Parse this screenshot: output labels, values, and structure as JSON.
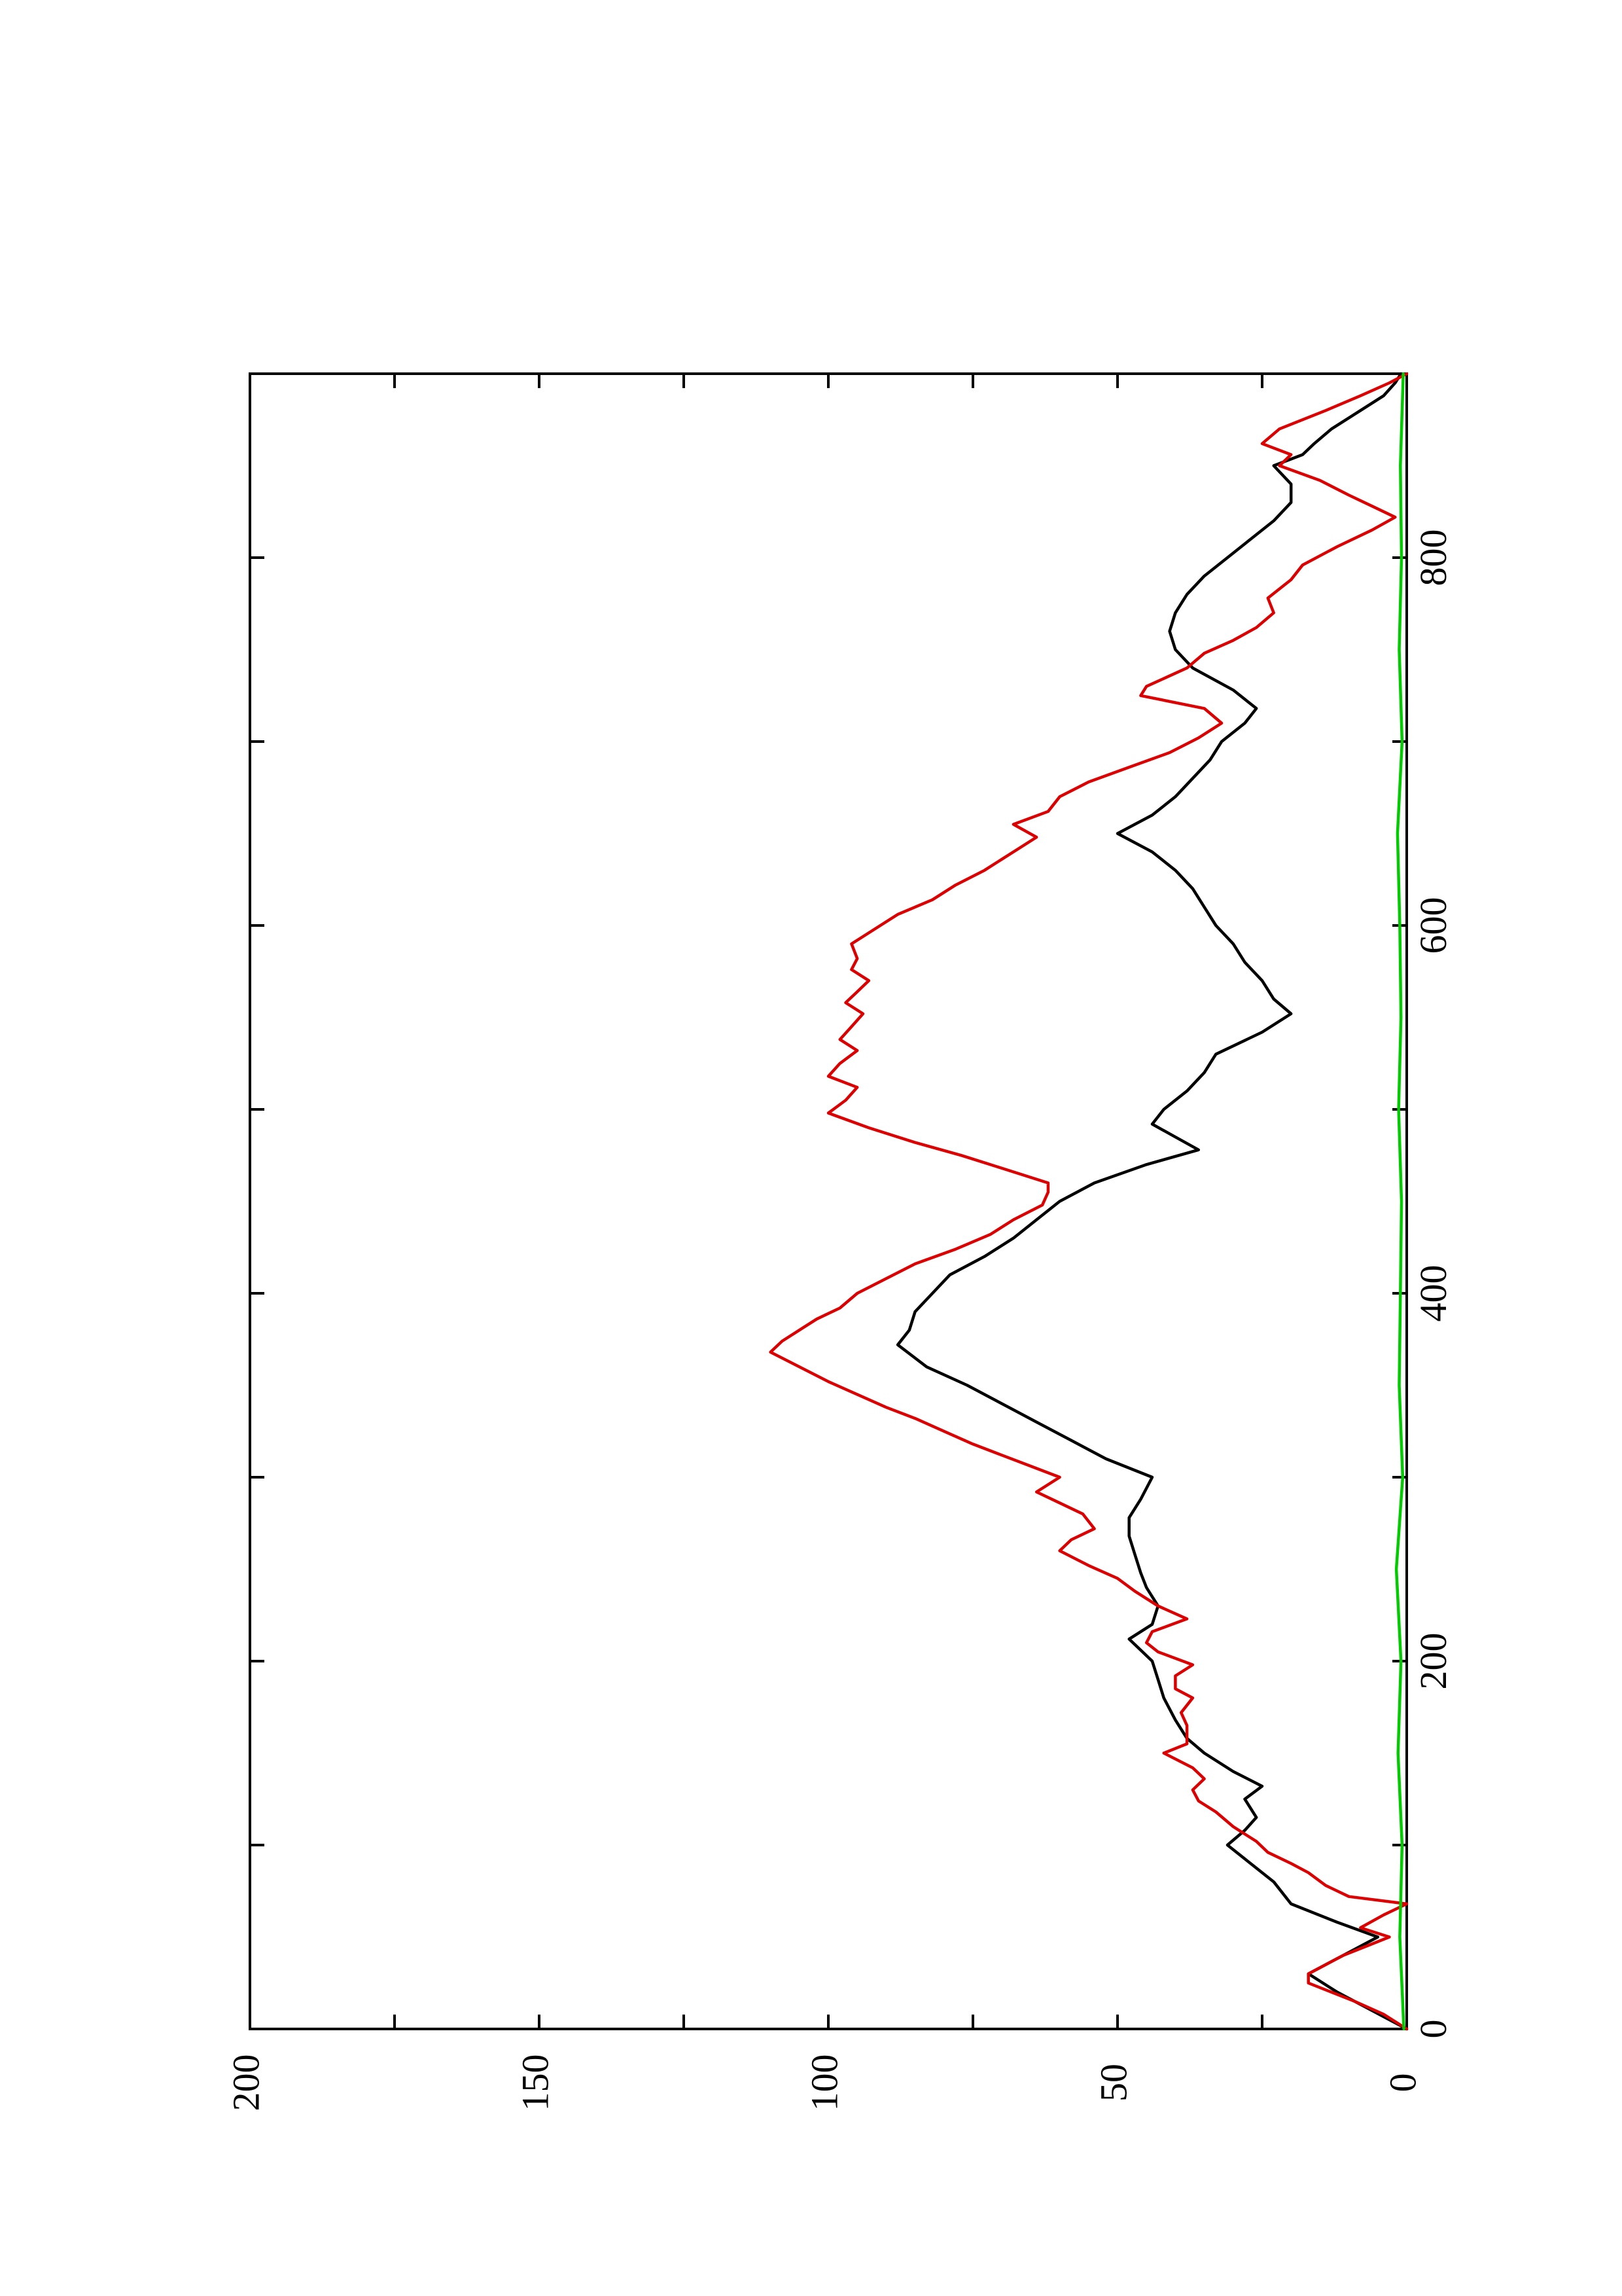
{
  "chart_data": {
    "type": "line",
    "orientation": "rotated-90-counterclockwise",
    "title": "",
    "xlabel": "",
    "ylabel": "",
    "xlim": [
      0,
      900
    ],
    "ylim": [
      0,
      200
    ],
    "xticks": [
      0,
      200,
      400,
      600,
      800
    ],
    "xticks_minor": [
      100,
      300,
      500,
      700
    ],
    "yticks": [
      0,
      50,
      100,
      150,
      200
    ],
    "yticks_minor": [
      25,
      75,
      125,
      175
    ],
    "grid": false,
    "legend": "none",
    "series": [
      {
        "color": "#000000",
        "points": [
          [
            0,
            0
          ],
          [
            10,
            6
          ],
          [
            20,
            12
          ],
          [
            30,
            17
          ],
          [
            40,
            11
          ],
          [
            50,
            5
          ],
          [
            58,
            12
          ],
          [
            68,
            20
          ],
          [
            80,
            23
          ],
          [
            90,
            27
          ],
          [
            100,
            31
          ],
          [
            108,
            28
          ],
          [
            115,
            26
          ],
          [
            125,
            28
          ],
          [
            132,
            25
          ],
          [
            140,
            30
          ],
          [
            150,
            35
          ],
          [
            158,
            38
          ],
          [
            168,
            40
          ],
          [
            180,
            42
          ],
          [
            190,
            43
          ],
          [
            200,
            44
          ],
          [
            212,
            48
          ],
          [
            220,
            44
          ],
          [
            230,
            43
          ],
          [
            240,
            45
          ],
          [
            248,
            46
          ],
          [
            258,
            47
          ],
          [
            268,
            48
          ],
          [
            278,
            48
          ],
          [
            288,
            46
          ],
          [
            300,
            44
          ],
          [
            310,
            52
          ],
          [
            320,
            58
          ],
          [
            330,
            64
          ],
          [
            340,
            70
          ],
          [
            350,
            76
          ],
          [
            360,
            83
          ],
          [
            372,
            88
          ],
          [
            380,
            86
          ],
          [
            390,
            85
          ],
          [
            400,
            82
          ],
          [
            410,
            79
          ],
          [
            420,
            73
          ],
          [
            430,
            68
          ],
          [
            440,
            64
          ],
          [
            450,
            60
          ],
          [
            460,
            54
          ],
          [
            470,
            45
          ],
          [
            478,
            36
          ],
          [
            485,
            40
          ],
          [
            492,
            44
          ],
          [
            500,
            42
          ],
          [
            510,
            38
          ],
          [
            520,
            35
          ],
          [
            530,
            33
          ],
          [
            542,
            25
          ],
          [
            552,
            20
          ],
          [
            560,
            23
          ],
          [
            570,
            25
          ],
          [
            580,
            28
          ],
          [
            590,
            30
          ],
          [
            600,
            33
          ],
          [
            610,
            35
          ],
          [
            620,
            37
          ],
          [
            630,
            40
          ],
          [
            640,
            44
          ],
          [
            650,
            50
          ],
          [
            660,
            44
          ],
          [
            670,
            40
          ],
          [
            680,
            37
          ],
          [
            690,
            34
          ],
          [
            700,
            32
          ],
          [
            710,
            28
          ],
          [
            718,
            26
          ],
          [
            728,
            30
          ],
          [
            740,
            37
          ],
          [
            750,
            40
          ],
          [
            760,
            41
          ],
          [
            770,
            40
          ],
          [
            780,
            38
          ],
          [
            790,
            35
          ],
          [
            800,
            31
          ],
          [
            810,
            27
          ],
          [
            820,
            23
          ],
          [
            830,
            20
          ],
          [
            840,
            20
          ],
          [
            850,
            23
          ],
          [
            856,
            18
          ],
          [
            862,
            16
          ],
          [
            870,
            13
          ],
          [
            880,
            8
          ],
          [
            888,
            4
          ],
          [
            895,
            2
          ],
          [
            900,
            1
          ]
        ]
      },
      {
        "color": "#dd0000",
        "points": [
          [
            0,
            0
          ],
          [
            8,
            4
          ],
          [
            15,
            9
          ],
          [
            25,
            17
          ],
          [
            30,
            17
          ],
          [
            35,
            14
          ],
          [
            40,
            11
          ],
          [
            45,
            7
          ],
          [
            50,
            3
          ],
          [
            55,
            8
          ],
          [
            62,
            4
          ],
          [
            68,
            0
          ],
          [
            72,
            10
          ],
          [
            78,
            14
          ],
          [
            85,
            17
          ],
          [
            90,
            20
          ],
          [
            96,
            24
          ],
          [
            102,
            26
          ],
          [
            110,
            30
          ],
          [
            118,
            33
          ],
          [
            124,
            36
          ],
          [
            130,
            37
          ],
          [
            136,
            35
          ],
          [
            142,
            37
          ],
          [
            150,
            42
          ],
          [
            155,
            38
          ],
          [
            160,
            38
          ],
          [
            165,
            38
          ],
          [
            172,
            39
          ],
          [
            180,
            37
          ],
          [
            185,
            40
          ],
          [
            192,
            40
          ],
          [
            198,
            37
          ],
          [
            205,
            43
          ],
          [
            210,
            45
          ],
          [
            216,
            44
          ],
          [
            223,
            38
          ],
          [
            230,
            43
          ],
          [
            238,
            47
          ],
          [
            245,
            50
          ],
          [
            252,
            55
          ],
          [
            260,
            60
          ],
          [
            266,
            58
          ],
          [
            272,
            54
          ],
          [
            280,
            56
          ],
          [
            286,
            60
          ],
          [
            292,
            64
          ],
          [
            300,
            60
          ],
          [
            306,
            65
          ],
          [
            312,
            70
          ],
          [
            318,
            75
          ],
          [
            325,
            80
          ],
          [
            332,
            85
          ],
          [
            338,
            90
          ],
          [
            345,
            95
          ],
          [
            352,
            100
          ],
          [
            360,
            105
          ],
          [
            368,
            110
          ],
          [
            374,
            108
          ],
          [
            380,
            105
          ],
          [
            386,
            102
          ],
          [
            392,
            98
          ],
          [
            400,
            95
          ],
          [
            408,
            90
          ],
          [
            416,
            85
          ],
          [
            424,
            78
          ],
          [
            432,
            72
          ],
          [
            440,
            68
          ],
          [
            448,
            63
          ],
          [
            455,
            62
          ],
          [
            460,
            62
          ],
          [
            468,
            70
          ],
          [
            475,
            77
          ],
          [
            482,
            85
          ],
          [
            490,
            93
          ],
          [
            498,
            100
          ],
          [
            505,
            97
          ],
          [
            512,
            95
          ],
          [
            518,
            100
          ],
          [
            525,
            98
          ],
          [
            532,
            95
          ],
          [
            538,
            98
          ],
          [
            545,
            96
          ],
          [
            552,
            94
          ],
          [
            558,
            97
          ],
          [
            564,
            95
          ],
          [
            570,
            93
          ],
          [
            576,
            96
          ],
          [
            582,
            95
          ],
          [
            590,
            96
          ],
          [
            598,
            92
          ],
          [
            606,
            88
          ],
          [
            614,
            82
          ],
          [
            622,
            78
          ],
          [
            630,
            73
          ],
          [
            636,
            70
          ],
          [
            642,
            67
          ],
          [
            648,
            64
          ],
          [
            655,
            68
          ],
          [
            662,
            62
          ],
          [
            670,
            60
          ],
          [
            678,
            55
          ],
          [
            686,
            48
          ],
          [
            694,
            41
          ],
          [
            702,
            36
          ],
          [
            710,
            32
          ],
          [
            718,
            35
          ],
          [
            725,
            46
          ],
          [
            730,
            45
          ],
          [
            740,
            38
          ],
          [
            748,
            35
          ],
          [
            755,
            30
          ],
          [
            762,
            26
          ],
          [
            770,
            23
          ],
          [
            778,
            24
          ],
          [
            788,
            20
          ],
          [
            796,
            18
          ],
          [
            806,
            12
          ],
          [
            815,
            6
          ],
          [
            822,
            2
          ],
          [
            828,
            6
          ],
          [
            834,
            10
          ],
          [
            842,
            15
          ],
          [
            850,
            22
          ],
          [
            856,
            20
          ],
          [
            862,
            25
          ],
          [
            870,
            22
          ],
          [
            880,
            14
          ],
          [
            888,
            8
          ],
          [
            895,
            3
          ],
          [
            900,
            0
          ]
        ]
      },
      {
        "color": "#00cc00",
        "points": [
          [
            0,
            0.5
          ],
          [
            50,
            1.2
          ],
          [
            100,
            0.8
          ],
          [
            150,
            1.5
          ],
          [
            200,
            1.0
          ],
          [
            250,
            1.8
          ],
          [
            300,
            0.7
          ],
          [
            350,
            1.3
          ],
          [
            400,
            1.1
          ],
          [
            450,
            0.9
          ],
          [
            500,
            1.4
          ],
          [
            550,
            1.0
          ],
          [
            600,
            1.2
          ],
          [
            650,
            1.6
          ],
          [
            700,
            0.8
          ],
          [
            750,
            1.3
          ],
          [
            800,
            0.9
          ],
          [
            850,
            1.1
          ],
          [
            900,
            0.6
          ]
        ]
      }
    ]
  }
}
